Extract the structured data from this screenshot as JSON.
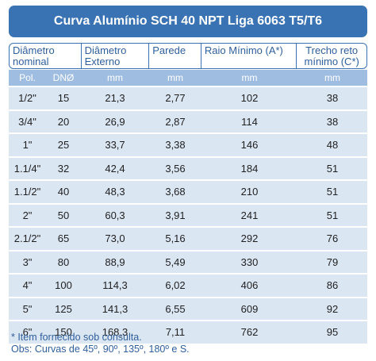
{
  "title": "Curva Alumínio SCH 40 NPT Liga 6063 T5/T6",
  "headers": {
    "diametro_nominal": "Diâmetro nominal",
    "diametro_externo": "Diâmetro Externo",
    "parede": "Parede",
    "raio_minimo": "Raio Mínimo (A*)",
    "trecho_reto": "Trecho reto mínimo (C*)"
  },
  "units": [
    "Pol.",
    "DNØ",
    "mm",
    "mm",
    "mm",
    "mm"
  ],
  "rows": [
    [
      "1/2\"",
      "15",
      "21,3",
      "2,77",
      "102",
      "38"
    ],
    [
      "3/4\"",
      "20",
      "26,9",
      "2,87",
      "114",
      "38"
    ],
    [
      "1\"",
      "25",
      "33,7",
      "3,38",
      "146",
      "48"
    ],
    [
      "1.1/4\"",
      "32",
      "42,4",
      "3,56",
      "184",
      "51"
    ],
    [
      "1.1/2\"",
      "40",
      "48,3",
      "3,68",
      "210",
      "51"
    ],
    [
      "2\"",
      "50",
      "60,3",
      "3,91",
      "241",
      "51"
    ],
    [
      "2.1/2\"",
      "65",
      "73,0",
      "5,16",
      "292",
      "76"
    ],
    [
      "3\"",
      "80",
      "88,9",
      "5,49",
      "330",
      "79"
    ],
    [
      "4\"",
      "100",
      "114,3",
      "6,02",
      "406",
      "86"
    ],
    [
      "5\"",
      "125",
      "141,3",
      "6,55",
      "609",
      "92"
    ],
    [
      "6\"",
      "150",
      "168,3",
      "7,11",
      "762",
      "95"
    ]
  ],
  "footnotes": {
    "line1": "* Item fornecido sob consulta.",
    "line2": "Obs: Curvas de 45º, 90º, 135º, 180º e S."
  }
}
